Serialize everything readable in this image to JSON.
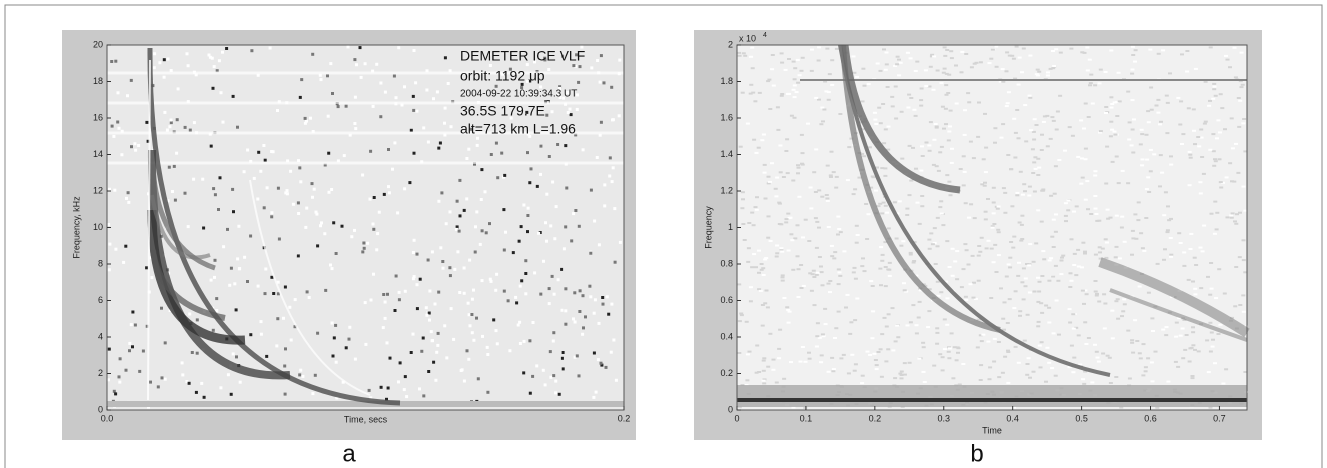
{
  "chart_data": [
    {
      "type": "spectrogram",
      "panel": "a",
      "xlabel": "Time, secs",
      "ylabel": "Frequency, kHz",
      "xlim": [
        0,
        0.2
      ],
      "xticks": [
        {
          "value": 0,
          "label": "0.0"
        },
        0.2
      ],
      "ylim": [
        0,
        20
      ],
      "yticks": [
        0,
        2,
        4,
        6,
        8,
        10,
        12,
        14,
        16,
        18,
        20
      ],
      "annotations": [
        "DEMETER ICE VLF",
        "orbit: 1192 up",
        "2004-09-22 10:39:34.3 UT",
        "36.5S 179.7E",
        "alt=713 km L=1.96"
      ]
    },
    {
      "type": "spectrogram",
      "panel": "b",
      "xlabel": "Time",
      "ylabel": "Frequency",
      "y_multiplier": "x 10",
      "y_multiplier_exponent": "4",
      "xlim": [
        0,
        0.74
      ],
      "xticks": [
        0,
        0.1,
        0.2,
        0.3,
        0.4,
        0.5,
        0.6,
        0.7
      ],
      "ylim": [
        0,
        2
      ],
      "yticks": [
        0,
        0.2,
        0.4,
        0.6,
        0.8,
        1,
        1.2,
        1.4,
        1.6,
        1.8,
        2
      ]
    }
  ]
}
